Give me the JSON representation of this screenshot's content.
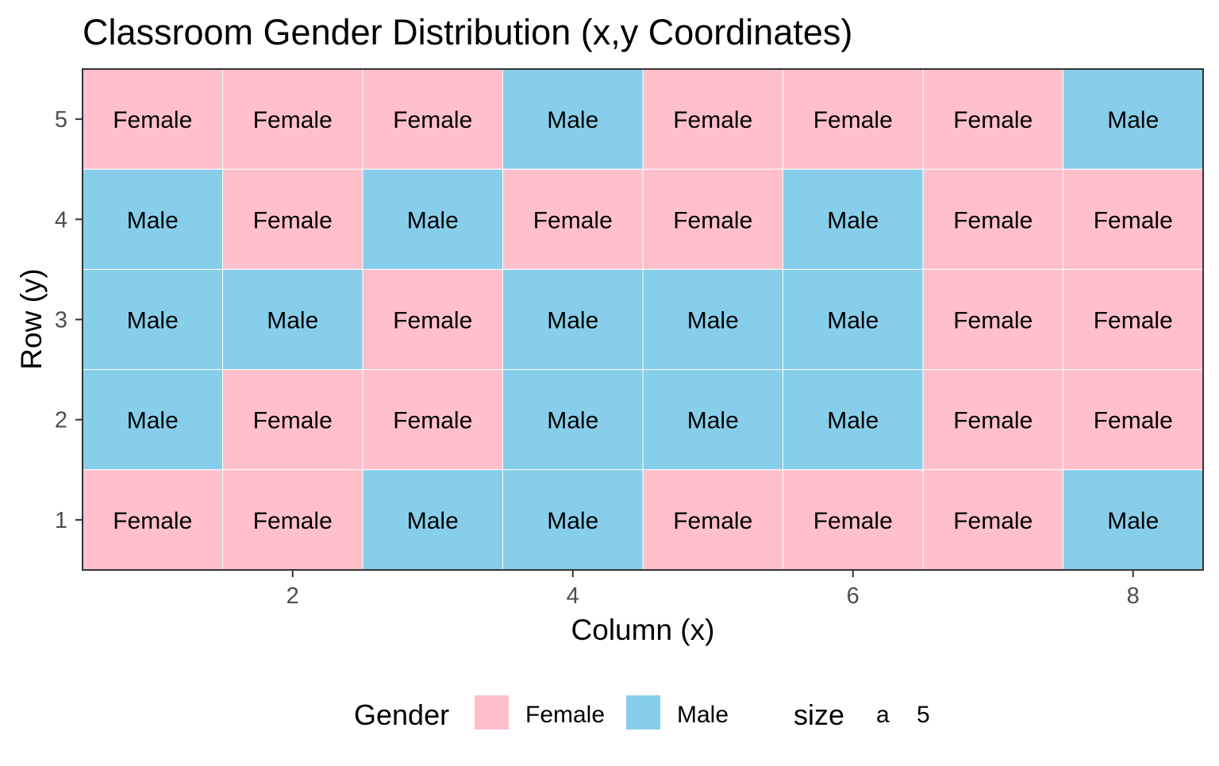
{
  "chart_data": {
    "type": "heatmap",
    "title": "Classroom Gender Distribution (x,y Coordinates)",
    "xlabel": "Column (x)",
    "ylabel": "Row (y)",
    "xlim": [
      0.5,
      8.5
    ],
    "ylim": [
      0.5,
      5.5
    ],
    "x_ticks": [
      2,
      4,
      6,
      8
    ],
    "y_ticks": [
      1,
      2,
      3,
      4,
      5
    ],
    "colors": {
      "Female": "#ffc0cb",
      "Male": "#87ceeb"
    },
    "legend": {
      "title": "Gender",
      "position": "bottom",
      "entries": [
        "Female",
        "Male"
      ],
      "size_title": "size",
      "size_key": "a",
      "size_value": "5"
    },
    "grid": [
      {
        "y": 5,
        "values": [
          "Female",
          "Female",
          "Female",
          "Male",
          "Female",
          "Female",
          "Female",
          "Male"
        ]
      },
      {
        "y": 4,
        "values": [
          "Male",
          "Female",
          "Male",
          "Female",
          "Female",
          "Male",
          "Female",
          "Female"
        ]
      },
      {
        "y": 3,
        "values": [
          "Male",
          "Male",
          "Female",
          "Male",
          "Male",
          "Male",
          "Female",
          "Female"
        ]
      },
      {
        "y": 2,
        "values": [
          "Male",
          "Female",
          "Female",
          "Male",
          "Male",
          "Male",
          "Female",
          "Female"
        ]
      },
      {
        "y": 1,
        "values": [
          "Female",
          "Female",
          "Male",
          "Male",
          "Female",
          "Female",
          "Female",
          "Male"
        ]
      }
    ]
  }
}
